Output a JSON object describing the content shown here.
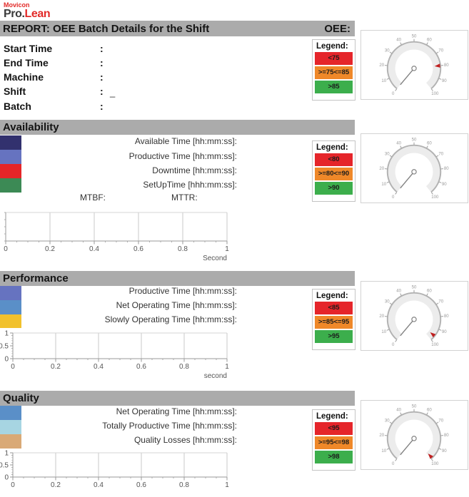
{
  "palette": {
    "bar_gray": "#ababab",
    "brand_red": "#e22a28",
    "legend_red": "#e5252a",
    "legend_orange": "#ef8829",
    "legend_green": "#3cae4c"
  },
  "logo": {
    "brand": "Movicon",
    "product_dark": "Pro.",
    "product_red": "Lean"
  },
  "header": {
    "title": "REPORT: OEE Batch Details for the Shift",
    "oee_label": "OEE:"
  },
  "info_rows": [
    {
      "label": "Start Time",
      "colon": ":",
      "value": ""
    },
    {
      "label": "End Time",
      "colon": ":",
      "value": ""
    },
    {
      "label": "Machine",
      "colon": ":",
      "value": ""
    },
    {
      "label": "Shift",
      "colon": ":",
      "value": "_"
    },
    {
      "label": "Batch",
      "colon": ":",
      "value": ""
    }
  ],
  "oee_panel": {
    "legend": {
      "title": "Legend:",
      "items": [
        {
          "text": "<75",
          "color": "#e5252a"
        },
        {
          "text": ">=75<=85",
          "color": "#ef8829"
        },
        {
          "text": ">85",
          "color": "#3cae4c"
        }
      ]
    },
    "gauge": {
      "min": 0,
      "max": 100,
      "tick_step": 10,
      "needle_value": 0,
      "marker_value": 80
    }
  },
  "sections": [
    {
      "title": "Availability",
      "rows": [
        {
          "swatch": "#32316e",
          "label": "Available Time [hh:mm:ss]:",
          "value": ""
        },
        {
          "swatch": "#6673c0",
          "label": "Productive Time [hh:mm:ss]:",
          "value": ""
        },
        {
          "swatch": "#e52528",
          "label": "Downtime [hh:mm:ss]:",
          "value": ""
        },
        {
          "swatch": "#3c8a55",
          "label": "SetUpTime [hhh:mm:ss]:",
          "value": ""
        }
      ],
      "mtbf_label": "MTBF:",
      "mttr_label": "MTTR:",
      "legend": {
        "title": "Legend:",
        "items": [
          {
            "text": "<80",
            "color": "#e5252a"
          },
          {
            "text": ">=80<=90",
            "color": "#ef8829"
          },
          {
            "text": ">90",
            "color": "#3cae4c"
          }
        ]
      },
      "gauge": {
        "min": 0,
        "max": 100,
        "tick_step": 10,
        "needle_value": 0,
        "marker_value": null
      },
      "chart": {
        "type": "line",
        "series": [],
        "x_ticks": [
          0,
          0.2,
          0.4,
          0.6,
          0.8,
          1
        ],
        "x_tick_labels": [
          "0",
          "0.2",
          "0.4",
          "0.6",
          "0.8",
          "1"
        ],
        "x_minor_step": 0.05,
        "y_ticks": null,
        "y_tick_labels": null,
        "xlabel": "Second"
      }
    },
    {
      "title": "Performance",
      "rows": [
        {
          "swatch": "#6673c0",
          "label": "Productive Time [hh:mm:ss]:",
          "value": ""
        },
        {
          "swatch": "#5a8fc8",
          "label": "Net Operating Time [hh:mm:ss]:",
          "value": ""
        },
        {
          "swatch": "#f1c12d",
          "label": "Slowly Operating Time [hh:mm:ss]:",
          "value": ""
        }
      ],
      "legend": {
        "title": "Legend:",
        "items": [
          {
            "text": "<85",
            "color": "#e5252a"
          },
          {
            "text": ">=85<=95",
            "color": "#ef8829"
          },
          {
            "text": ">95",
            "color": "#3cae4c"
          }
        ]
      },
      "gauge": {
        "min": 0,
        "max": 100,
        "tick_step": 10,
        "needle_value": 0,
        "marker_value": 96
      },
      "chart": {
        "type": "line",
        "series": [],
        "x_ticks": [
          0,
          0.2,
          0.4,
          0.6,
          0.8,
          1
        ],
        "x_tick_labels": [
          "0",
          "0.2",
          "0.4",
          "0.6",
          "0.8",
          "1"
        ],
        "x_minor_step": 0.05,
        "y_ticks": [
          1,
          0.5,
          0
        ],
        "y_tick_labels": [
          "1",
          "0.5",
          "0"
        ],
        "xlabel": "second"
      }
    },
    {
      "title": "Quality",
      "rows": [
        {
          "swatch": "#5a8fc8",
          "label": "Net Operating Time [hh:mm:ss]:",
          "value": ""
        },
        {
          "swatch": "#a7d5e2",
          "label": "Totally Productive Time [hh:mm:ss]:",
          "value": ""
        },
        {
          "swatch": "#d9a976",
          "label": "Quality Losses [hh:mm:ss]:",
          "value": ""
        }
      ],
      "legend": {
        "title": "Legend:",
        "items": [
          {
            "text": "<95",
            "color": "#e5252a"
          },
          {
            "text": ">=95<=98",
            "color": "#ef8829"
          },
          {
            "text": ">98",
            "color": "#3cae4c"
          }
        ]
      },
      "gauge": {
        "min": 0,
        "max": 100,
        "tick_step": 10,
        "needle_value": 0,
        "marker_value": 99
      },
      "chart": {
        "type": "line",
        "series": [],
        "x_ticks": [
          0,
          0.2,
          0.4,
          0.6,
          0.8,
          1
        ],
        "x_tick_labels": [
          "0",
          "0.2",
          "0.4",
          "0.6",
          "0.8",
          "1"
        ],
        "x_minor_step": 0.05,
        "y_ticks": [
          1,
          0.5,
          0
        ],
        "y_tick_labels": [
          "1",
          "0.5",
          "0"
        ],
        "xlabel": null
      }
    }
  ]
}
